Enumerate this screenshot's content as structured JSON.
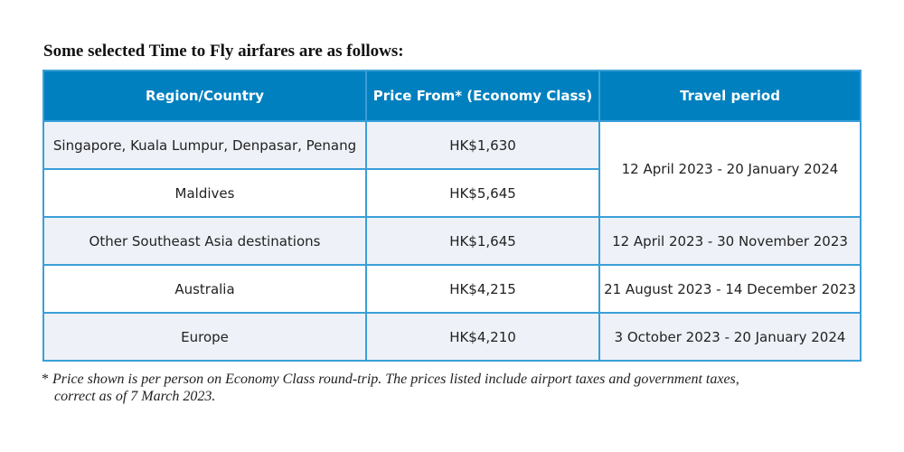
{
  "title": "Some selected Time to Fly airfares are as follows:",
  "table": {
    "headers": [
      "Region/Country",
      "Price From* (Economy Class)",
      "Travel period"
    ],
    "rows": [
      {
        "region": "Singapore, Kuala Lumpur, Denpasar, Penang",
        "price": "HK$1,630",
        "period": "12 April 2023  - 20 January 2024"
      },
      {
        "region": "Maldives",
        "price": "HK$5,645"
      },
      {
        "region": "Other Southeast Asia destinations",
        "price": "HK$1,645",
        "period": "12 April 2023  - 30 November 2023"
      },
      {
        "region": "Australia",
        "price": "HK$4,215",
        "period": "21 August 2023  - 14 December 2023"
      },
      {
        "region": "Europe",
        "price": "HK$4,210",
        "period": "3 October 2023   - 20 January 2024"
      }
    ]
  },
  "footnote": {
    "symbol": "*",
    "line1": "Price shown is per person on Economy Class round-trip. The prices listed include airport taxes and government taxes,",
    "line2": "correct as of 7 March 2023."
  },
  "colors": {
    "header": "#0080bf",
    "border": "#3a9fd8",
    "alt_row": "#eef2f8"
  }
}
